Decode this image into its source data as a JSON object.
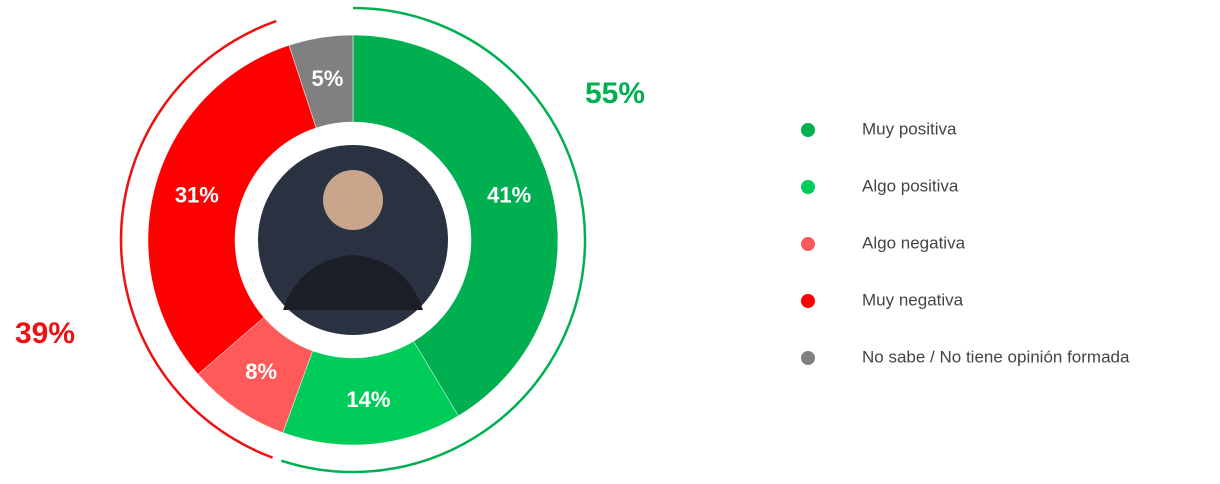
{
  "chart_data": {
    "type": "donut",
    "categories": [
      "Muy positiva",
      "Algo positiva",
      "Algo negativa",
      "Muy negativa",
      "No sabe / No tiene opinión formada"
    ],
    "values": [
      41,
      14,
      8,
      31,
      5
    ],
    "value_labels": [
      "41%",
      "14%",
      "8%",
      "31%",
      "5%"
    ],
    "colors": [
      "#00b050",
      "#00cc5a",
      "#ff5a5a",
      "#ff0000",
      "#808080"
    ],
    "groups": [
      {
        "label": "55%",
        "value": 55,
        "color": "#00b050"
      },
      {
        "label": "39%",
        "value": 39,
        "color": "#ee1111"
      }
    ]
  }
}
